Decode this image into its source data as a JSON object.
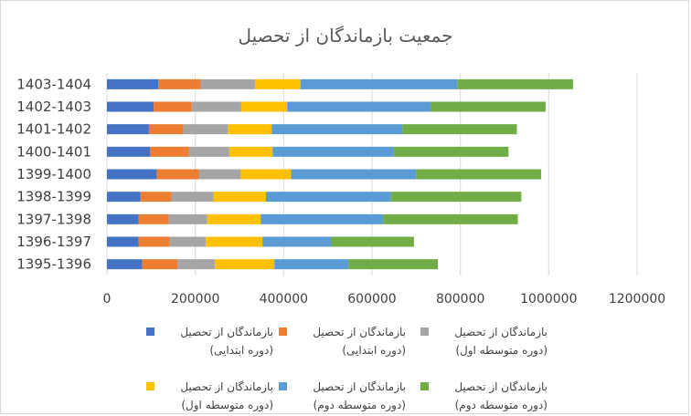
{
  "chart_data": {
    "type": "bar",
    "orientation": "horizontal",
    "stacked": true,
    "title": "جمعیت بازماندگان از تحصیل",
    "categories": [
      "1395-1396",
      "1396-1397",
      "1397-1398",
      "1398-1399",
      "1399-1400",
      "1400-1401",
      "1401-1402",
      "1402-1403",
      "1403-1404"
    ],
    "xlim": [
      0,
      1200000
    ],
    "xticks": [
      "0",
      "200000",
      "400000",
      "600000",
      "800000",
      "1000000",
      "1200000"
    ],
    "grid": "vertical",
    "legend_position": "bottom",
    "series": [
      {
        "name": "بازماندگان از تحصیل (دوره ابتدایی)",
        "color": "#4472C4",
        "values": [
          80000,
          72000,
          72000,
          76000,
          113000,
          98000,
          95000,
          106000,
          116000
        ]
      },
      {
        "name": "بازماندگان از تحصیل (دوره ابتدایی)",
        "color": "#ED7D31",
        "values": [
          80000,
          70000,
          68000,
          70000,
          95000,
          88000,
          78000,
          86000,
          96000
        ]
      },
      {
        "name": "بازماندگان از تحصیل (دوره متوسطه اول)",
        "color": "#A5A5A5",
        "values": [
          84000,
          82000,
          87000,
          95000,
          95000,
          91000,
          101000,
          112000,
          123000
        ]
      },
      {
        "name": "بازماندگان از تحصیل (دوره متوسطه اول)",
        "color": "#FFC000",
        "values": [
          135000,
          128000,
          121000,
          119000,
          114000,
          98000,
          99000,
          104000,
          103000
        ]
      },
      {
        "name": "بازماندگان از تحصیل (دوره متوسطه دوم)",
        "color": "#5B9BD5",
        "values": [
          168000,
          155000,
          277000,
          283000,
          283000,
          274000,
          296000,
          324000,
          355000
        ]
      },
      {
        "name": "بازماندگان از تحصیل (دوره متوسطه دوم)",
        "color": "#70AD47",
        "values": [
          202000,
          188000,
          305000,
          295000,
          283000,
          260000,
          259000,
          261000,
          262000
        ]
      }
    ]
  }
}
